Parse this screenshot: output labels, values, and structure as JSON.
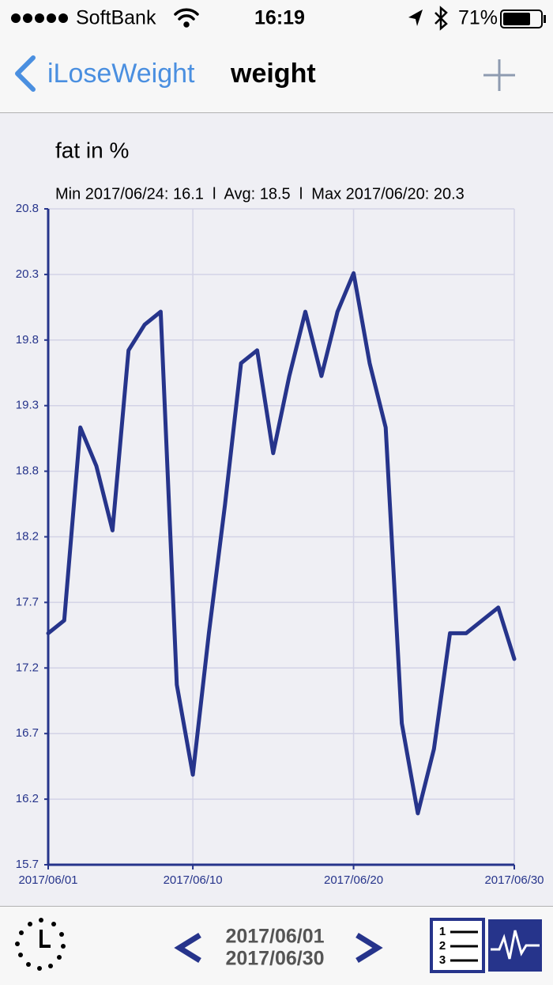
{
  "status_bar": {
    "carrier": "SoftBank",
    "time": "16:19",
    "battery": "71%"
  },
  "nav": {
    "back": "iLoseWeight",
    "title": "weight"
  },
  "chart_data": {
    "type": "line",
    "title": "fat in %",
    "subtitle": "Min 2017/06/24: 16.1  l  Avg: 18.5  l  Max 2017/06/20: 20.3",
    "x": [
      "2017/06/01",
      "2017/06/02",
      "2017/06/03",
      "2017/06/04",
      "2017/06/05",
      "2017/06/06",
      "2017/06/07",
      "2017/06/08",
      "2017/06/09",
      "2017/06/10",
      "2017/06/11",
      "2017/06/12",
      "2017/06/13",
      "2017/06/14",
      "2017/06/15",
      "2017/06/16",
      "2017/06/17",
      "2017/06/18",
      "2017/06/19",
      "2017/06/20",
      "2017/06/21",
      "2017/06/22",
      "2017/06/23",
      "2017/06/24",
      "2017/06/25",
      "2017/06/26",
      "2017/06/27",
      "2017/06/28",
      "2017/06/29",
      "2017/06/30"
    ],
    "series": [
      {
        "name": "fat",
        "color": "#26348b",
        "values": [
          17.5,
          17.6,
          19.1,
          18.8,
          18.3,
          19.7,
          19.9,
          20.0,
          17.1,
          16.4,
          17.5,
          18.5,
          19.6,
          19.7,
          18.9,
          19.5,
          20.0,
          19.5,
          20.0,
          20.3,
          19.6,
          19.1,
          16.8,
          16.1,
          16.6,
          17.5,
          17.5,
          17.6,
          17.7,
          17.3
        ]
      }
    ],
    "xlim": [
      "2017/06/01",
      "2017/06/30"
    ],
    "xticks": [
      "2017/06/01",
      "2017/06/10",
      "2017/06/20",
      "2017/06/30"
    ],
    "ylim": [
      15.7,
      20.8
    ],
    "yticks": [
      15.7,
      {
        "value": 16.21,
        "label": "16.2"
      },
      {
        "value": 16.72,
        "label": "16.7"
      },
      {
        "value": 17.23,
        "label": "17.2"
      },
      {
        "value": 17.74,
        "label": "17.7"
      },
      {
        "value": 18.25,
        "label": "18.2"
      },
      {
        "value": 18.76,
        "label": "18.8"
      },
      {
        "value": 19.27,
        "label": "19.3"
      },
      {
        "value": 19.78,
        "label": "19.8"
      },
      {
        "value": 20.29,
        "label": "20.3"
      },
      20.8
    ],
    "grid": true
  },
  "footer": {
    "start": "2017/06/01",
    "end": "2017/06/30"
  }
}
